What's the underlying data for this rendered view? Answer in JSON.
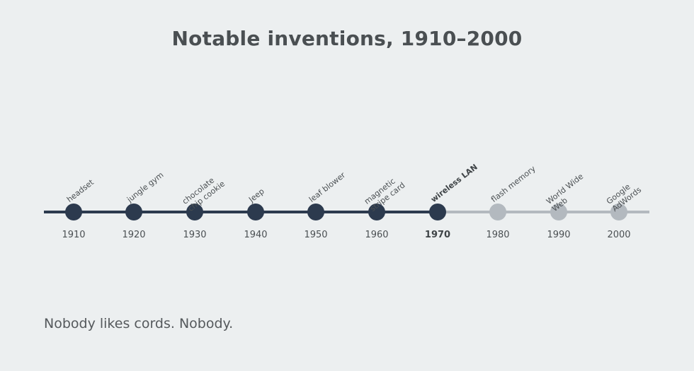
{
  "title": "Notable inventions, 1910–2000",
  "caption": "Nobody likes cords. Nobody.",
  "colors": {
    "background": "#eceff0",
    "past": "#2c3a4e",
    "future": "#b3b9bf",
    "text": "#4a4f52"
  },
  "current_year": "1970",
  "events": [
    {
      "year": "1910",
      "lines": [
        "headset",
        ""
      ]
    },
    {
      "year": "1920",
      "lines": [
        "jungle gym",
        ""
      ]
    },
    {
      "year": "1930",
      "lines": [
        "chocolate",
        "chip cookie"
      ]
    },
    {
      "year": "1940",
      "lines": [
        "Jeep",
        ""
      ]
    },
    {
      "year": "1950",
      "lines": [
        "leaf blower",
        ""
      ]
    },
    {
      "year": "1960",
      "lines": [
        "magnetic",
        "stripe card"
      ]
    },
    {
      "year": "1970",
      "lines": [
        "wireless LAN",
        ""
      ]
    },
    {
      "year": "1980",
      "lines": [
        "flash memory",
        ""
      ]
    },
    {
      "year": "1990",
      "lines": [
        "World Wide",
        "Web"
      ]
    },
    {
      "year": "2000",
      "lines": [
        "Google",
        "AdWords"
      ]
    }
  ]
}
